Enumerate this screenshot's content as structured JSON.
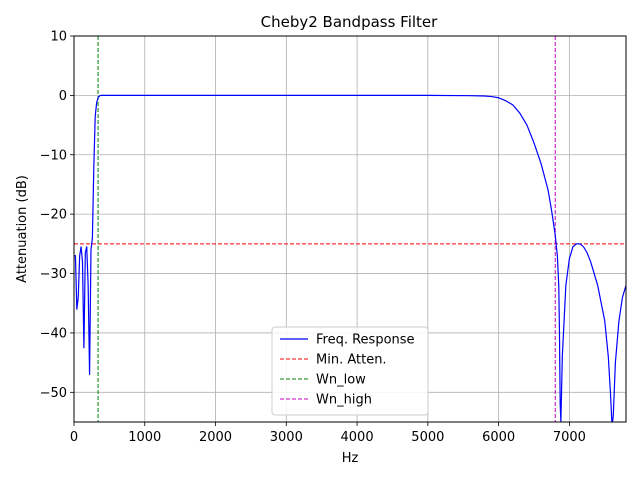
{
  "chart_data": {
    "type": "line",
    "title": "Cheby2 Bandpass Filter",
    "xlabel": "Hz",
    "ylabel": "Attenuation (dB)",
    "xlim": [
      0,
      7800
    ],
    "ylim": [
      -55,
      10
    ],
    "xticks": [
      0,
      1000,
      2000,
      3000,
      4000,
      5000,
      6000,
      7000
    ],
    "yticks": [
      10,
      0,
      -10,
      -20,
      -30,
      -40,
      -50
    ],
    "grid": true,
    "legend_position": "lower center",
    "series": [
      {
        "name": "Freq. Response",
        "color": "#0000ff",
        "style": "solid",
        "x": [
          0,
          20,
          40,
          60,
          80,
          100,
          120,
          140,
          160,
          180,
          200,
          220,
          240,
          260,
          280,
          300,
          320,
          340,
          360,
          380,
          400,
          430,
          460,
          500,
          600,
          1000,
          2000,
          3000,
          4000,
          5000,
          5600,
          5800,
          5900,
          6000,
          6100,
          6200,
          6300,
          6400,
          6500,
          6600,
          6700,
          6750,
          6800,
          6830,
          6850,
          6860,
          6870,
          6880,
          6900,
          6950,
          7000,
          7050,
          7100,
          7150,
          7200,
          7250,
          7300,
          7350,
          7400,
          7450,
          7500,
          7550,
          7580,
          7600,
          7610,
          7620,
          7650,
          7700,
          7750,
          7800
        ],
        "y": [
          -27,
          -27,
          -36,
          -34,
          -27,
          -25.5,
          -28,
          -42.5,
          -26.5,
          -25.5,
          -32,
          -47,
          -26,
          -24,
          -12,
          -3.5,
          -1.2,
          -0.4,
          -0.1,
          0,
          0,
          0,
          0,
          0,
          0,
          0,
          0,
          0,
          0,
          0,
          -0.05,
          -0.1,
          -0.2,
          -0.4,
          -0.9,
          -1.6,
          -3,
          -5,
          -8,
          -11.5,
          -16,
          -19.5,
          -23.5,
          -27,
          -32,
          -40,
          -52,
          -55,
          -44,
          -32,
          -27.5,
          -25.5,
          -25,
          -25,
          -25.5,
          -26.5,
          -28,
          -30,
          -32,
          -35,
          -38,
          -44,
          -50,
          -55,
          -55,
          -54,
          -45,
          -38,
          -34,
          -32
        ]
      },
      {
        "name": "Min. Atten.",
        "color": "#ff0000",
        "style": "dashed",
        "orientation": "horizontal",
        "value": -25
      },
      {
        "name": "Wn_low",
        "color": "#008000",
        "style": "dashed",
        "orientation": "vertical",
        "value": 340
      },
      {
        "name": "Wn_high",
        "color": "#bf00bf",
        "style": "dashed",
        "orientation": "vertical",
        "value": 6800
      }
    ]
  }
}
